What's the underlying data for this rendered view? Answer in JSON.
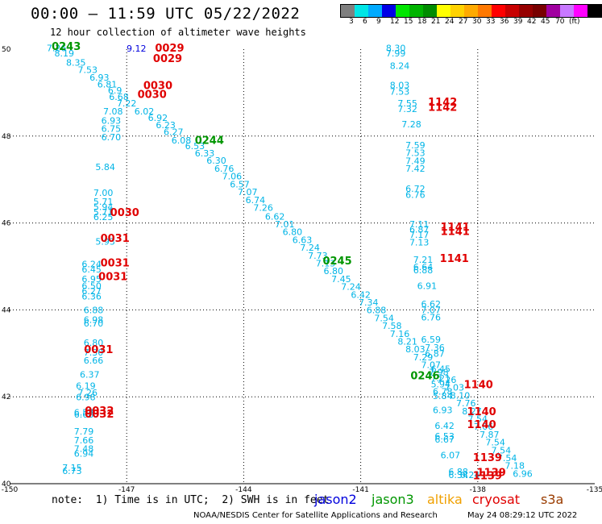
{
  "header": {
    "title": "00:00 – 11:59 UTC 05/22/2022",
    "subtitle": "12 hour collection of altimeter wave heights"
  },
  "colorbar": {
    "colors": [
      "#7f7f7f",
      "#00e6e6",
      "#00aaff",
      "#0000e6",
      "#00e600",
      "#00b400",
      "#008c00",
      "#ffff00",
      "#ffd200",
      "#ffaa00",
      "#ff7800",
      "#ff0000",
      "#c80000",
      "#960000",
      "#780000",
      "#a000a0",
      "#c878ff",
      "#ff00ff",
      "#000000"
    ],
    "labels": [
      "3",
      "6",
      "9",
      "12",
      "15",
      "18",
      "21",
      "24",
      "27",
      "30",
      "33",
      "36",
      "39",
      "42",
      "45",
      "70",
      "(ft)"
    ]
  },
  "map": {
    "lon_ticks": [
      "-150",
      "-147",
      "-144",
      "-141",
      "-138",
      "-135"
    ],
    "lat_ticks": [
      "50",
      "48",
      "46",
      "44",
      "42",
      "40"
    ],
    "lon_range": [
      -150,
      -135
    ],
    "lat_range": [
      40,
      50
    ]
  },
  "footer": {
    "note": "note:  1) Time is in UTC;  2) SWH is in feet",
    "legend": [
      {
        "label": "jason2",
        "color": "#0000dd"
      },
      {
        "label": "jason3",
        "color": "#009600"
      },
      {
        "label": "altika",
        "color": "#f0a000"
      },
      {
        "label": "cryosat",
        "color": "#e00000"
      },
      {
        "label": "s3a",
        "color": "#9a3c00"
      }
    ],
    "credit": "NOAA/NESDIS Center for Satellite Applications and Research",
    "timestamp": "May 24 08:29:12 UTC 2022"
  },
  "swh_points": [
    [
      "7.26",
      -148.8,
      49.95
    ],
    [
      "8.19",
      -148.6,
      49.83
    ],
    [
      "8.35",
      -148.3,
      49.62
    ],
    [
      "7.53",
      -148.0,
      49.45
    ],
    [
      "6.93",
      -147.7,
      49.28
    ],
    [
      "6.81",
      -147.5,
      49.12
    ],
    [
      "6.9",
      -147.3,
      48.98
    ],
    [
      "6.68",
      -147.2,
      48.83
    ],
    [
      "7.22",
      -147.0,
      48.68
    ],
    [
      "7.08",
      -147.35,
      48.5
    ],
    [
      "6.93",
      -147.4,
      48.28
    ],
    [
      "6.75",
      -147.4,
      48.1
    ],
    [
      "6.70",
      -147.4,
      47.9
    ],
    [
      "5.84",
      -147.55,
      47.22
    ],
    [
      "7.00",
      -147.6,
      46.62
    ],
    [
      "5.71",
      -147.6,
      46.42
    ],
    [
      "5.94",
      -147.6,
      46.3
    ],
    [
      "5.71",
      -147.6,
      46.18
    ],
    [
      "6.25",
      -147.6,
      46.07
    ],
    [
      "5.93",
      -147.55,
      45.5
    ],
    [
      "6.24",
      -147.9,
      44.98
    ],
    [
      "6.45",
      -147.9,
      44.86
    ],
    [
      "6.95",
      -147.9,
      44.64
    ],
    [
      "6.50",
      -147.9,
      44.48
    ],
    [
      "6.27",
      -147.9,
      44.36
    ],
    [
      "6.36",
      -147.9,
      44.24
    ],
    [
      "6.88",
      -147.85,
      43.92
    ],
    [
      "6.98",
      -147.85,
      43.7
    ],
    [
      "6.70",
      -147.85,
      43.62
    ],
    [
      "6.80",
      -147.85,
      43.17
    ],
    [
      "7.30",
      -147.85,
      42.95
    ],
    [
      "6.66",
      -147.85,
      42.76
    ],
    [
      "6.37",
      -147.95,
      42.44
    ],
    [
      "6.19",
      -148.05,
      42.18
    ],
    [
      "7.26",
      -148.0,
      42.02
    ],
    [
      "6.98",
      -148.05,
      41.92
    ],
    [
      "6.57",
      -148.1,
      41.57
    ],
    [
      "6.68",
      -148.1,
      41.52
    ],
    [
      "7.79",
      -148.1,
      41.13
    ],
    [
      "7.66",
      -148.1,
      40.93
    ],
    [
      "7.48",
      -148.1,
      40.73
    ],
    [
      "6.94",
      -148.1,
      40.62
    ],
    [
      "7.15",
      -148.4,
      40.3
    ],
    [
      "6.73",
      -148.4,
      40.22
    ],
    [
      "6.02",
      -146.55,
      48.5
    ],
    [
      "6.92",
      -146.2,
      48.35
    ],
    [
      "6.23",
      -146.0,
      48.18
    ],
    [
      "6.27",
      -145.8,
      48.02
    ],
    [
      "6.08",
      -145.6,
      47.83
    ],
    [
      "6.53",
      -145.25,
      47.7
    ],
    [
      "6.33",
      -145.0,
      47.53
    ],
    [
      "6.30",
      -144.7,
      47.37
    ],
    [
      "6.76",
      -144.5,
      47.18
    ],
    [
      "7.06",
      -144.3,
      47.0
    ],
    [
      "6.57",
      -144.1,
      46.82
    ],
    [
      "7.07",
      -143.9,
      46.64
    ],
    [
      "6.74",
      -143.7,
      46.46
    ],
    [
      "7.26",
      -143.5,
      46.28
    ],
    [
      "6.62",
      -143.2,
      46.08
    ],
    [
      "7.01",
      -142.95,
      45.9
    ],
    [
      "6.80",
      -142.75,
      45.72
    ],
    [
      "6.63",
      -142.5,
      45.54
    ],
    [
      "7.24",
      -142.3,
      45.36
    ],
    [
      "7.73",
      -142.1,
      45.18
    ],
    [
      "7.13",
      -141.9,
      45.0
    ],
    [
      "6.80",
      -141.7,
      44.82
    ],
    [
      "7.45",
      -141.5,
      44.64
    ],
    [
      "7.24",
      -141.25,
      44.46
    ],
    [
      "6.42",
      -141.0,
      44.28
    ],
    [
      "7.34",
      -140.8,
      44.1
    ],
    [
      "6.88",
      -140.6,
      43.92
    ],
    [
      "7.54",
      -140.4,
      43.74
    ],
    [
      "7.58",
      -140.2,
      43.56
    ],
    [
      "7.16",
      -140.0,
      43.38
    ],
    [
      "8.21",
      -139.8,
      43.2
    ],
    [
      "8.03",
      -139.6,
      43.02
    ],
    [
      "7.29",
      -139.4,
      42.84
    ],
    [
      "7.07",
      -139.2,
      42.66
    ],
    [
      "7.98",
      -139.0,
      42.5
    ],
    [
      "7.26",
      -138.8,
      42.32
    ],
    [
      "7.03",
      -138.6,
      42.14
    ],
    [
      "8.10",
      -138.45,
      41.96
    ],
    [
      "7.76",
      -138.3,
      41.78
    ],
    [
      "8.27",
      -138.15,
      41.6
    ],
    [
      "7.54",
      -138.0,
      41.42
    ],
    [
      "7.06",
      -137.85,
      41.24
    ],
    [
      "7.87",
      -137.7,
      41.06
    ],
    [
      "7.54",
      -137.55,
      40.88
    ],
    [
      "7.54",
      -137.4,
      40.7
    ],
    [
      "7.54",
      -137.25,
      40.52
    ],
    [
      "7.18",
      -137.05,
      40.34
    ],
    [
      "6.96",
      -136.85,
      40.16
    ],
    [
      "8.30",
      -140.1,
      49.95
    ],
    [
      "7.99",
      -140.1,
      49.83
    ],
    [
      "8.24",
      -140.0,
      49.55
    ],
    [
      "8.03",
      -140.0,
      49.1
    ],
    [
      "7.53",
      -140.0,
      48.95
    ],
    [
      "7.55",
      -139.8,
      48.68
    ],
    [
      "7.32",
      -139.8,
      48.55
    ],
    [
      "7.28",
      -139.7,
      48.2
    ],
    [
      "7.59",
      -139.6,
      47.72
    ],
    [
      "7.53",
      -139.6,
      47.54
    ],
    [
      "7.49",
      -139.6,
      47.36
    ],
    [
      "7.42",
      -139.6,
      47.18
    ],
    [
      "6.72",
      -139.6,
      46.72
    ],
    [
      "6.76",
      -139.6,
      46.58
    ],
    [
      "7.11",
      -139.5,
      45.9
    ],
    [
      "6.87",
      -139.5,
      45.78
    ],
    [
      "7.17",
      -139.5,
      45.66
    ],
    [
      "7.13",
      -139.5,
      45.48
    ],
    [
      "7.21",
      -139.4,
      45.08
    ],
    [
      "6.64",
      -139.4,
      44.92
    ],
    [
      "6.88",
      -139.4,
      44.84
    ],
    [
      "6.91",
      -139.3,
      44.48
    ],
    [
      "6.62",
      -139.2,
      44.06
    ],
    [
      "7.07",
      -139.2,
      43.92
    ],
    [
      "6.76",
      -139.2,
      43.76
    ],
    [
      "6.59",
      -139.2,
      43.25
    ],
    [
      "7.36",
      -139.1,
      43.06
    ],
    [
      "6.87",
      -139.1,
      42.92
    ],
    [
      "6.45",
      -138.95,
      42.57
    ],
    [
      "7.21",
      -138.95,
      42.36
    ],
    [
      "5.94",
      -138.95,
      42.22
    ],
    [
      "6.78",
      -138.9,
      42.05
    ],
    [
      "5.84",
      -138.9,
      41.95
    ],
    [
      "6.93",
      -138.9,
      41.62
    ],
    [
      "6.42",
      -138.85,
      41.26
    ],
    [
      "6.53",
      -138.85,
      41.02
    ],
    [
      "6.67",
      -138.85,
      40.95
    ],
    [
      "6.07",
      -138.7,
      40.58
    ],
    [
      "6.88",
      -138.5,
      40.2
    ],
    [
      "6.34",
      -138.5,
      40.13
    ],
    [
      "6.24",
      -138.2,
      40.13
    ]
  ],
  "jason2_points": [
    [
      "9.12",
      -146.75,
      49.94
    ]
  ],
  "pass_labels": [
    [
      "0243",
      -148.55,
      49.98,
      "#009600"
    ],
    [
      "0244",
      -144.88,
      47.82,
      "#009600"
    ],
    [
      "0245",
      -141.6,
      45.05,
      "#009600"
    ],
    [
      "0246",
      -139.35,
      42.4,
      "#009600"
    ],
    [
      "0029",
      -145.9,
      49.94,
      "#e00000"
    ],
    [
      "0029",
      -145.95,
      49.7,
      "#e00000"
    ],
    [
      "0030",
      -146.2,
      49.08,
      "#e00000"
    ],
    [
      "0030",
      -146.35,
      48.88,
      "#e00000"
    ],
    [
      "0030",
      -147.05,
      46.16,
      "#e00000"
    ],
    [
      "0031",
      -147.3,
      45.57,
      "#e00000"
    ],
    [
      "0031",
      -147.3,
      45.0,
      "#e00000"
    ],
    [
      "0031",
      -147.35,
      44.68,
      "#e00000"
    ],
    [
      "0031",
      -147.72,
      43.01,
      "#e00000"
    ],
    [
      "0032",
      -147.7,
      41.6,
      "#e00000"
    ],
    [
      "0032",
      -147.7,
      41.52,
      "#e00000"
    ],
    [
      "1142",
      -138.9,
      48.7,
      "#e00000"
    ],
    [
      "1142",
      -138.9,
      48.58,
      "#e00000"
    ],
    [
      "1141",
      -138.58,
      45.83,
      "#e00000"
    ],
    [
      "1141",
      -138.58,
      45.72,
      "#e00000"
    ],
    [
      "1141",
      -138.6,
      45.1,
      "#e00000"
    ],
    [
      "1140",
      -137.98,
      42.2,
      "#e00000"
    ],
    [
      "1140",
      -137.9,
      41.58,
      "#e00000"
    ],
    [
      "1140",
      -137.9,
      41.28,
      "#e00000"
    ],
    [
      "1139",
      -137.75,
      40.52,
      "#e00000"
    ],
    [
      "1139",
      -137.65,
      40.18,
      "#e00000"
    ],
    [
      "1139",
      -137.75,
      40.1,
      "#e00000"
    ]
  ]
}
